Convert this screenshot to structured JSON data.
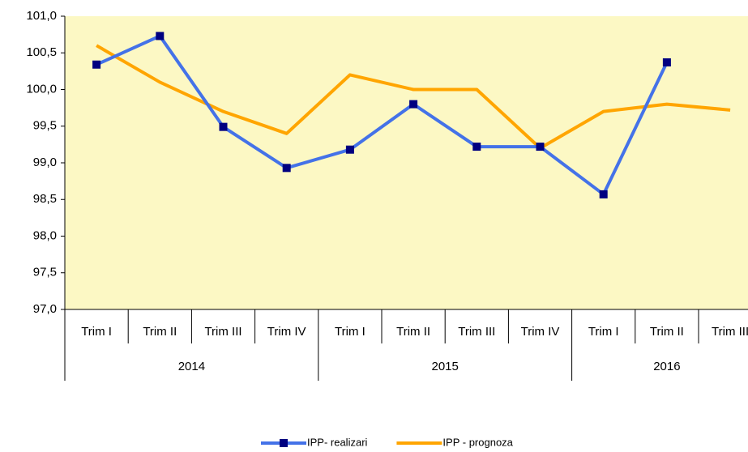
{
  "chart_data": {
    "type": "line",
    "categories": [
      "Trim I",
      "Trim II",
      "Trim III",
      "Trim IV",
      "Trim I",
      "Trim II",
      "Trim III",
      "Trim IV",
      "Trim I",
      "Trim II",
      "Trim III"
    ],
    "category_groups": [
      {
        "label": "2014",
        "span": 4
      },
      {
        "label": "2015",
        "span": 4
      },
      {
        "label": "2016",
        "span": 3
      }
    ],
    "series": [
      {
        "name": "IPP- realizari",
        "color": "#4472e8",
        "marker_color": "#000080",
        "marker": true,
        "values": [
          100.34,
          100.73,
          99.49,
          98.93,
          99.18,
          99.8,
          99.22,
          99.22,
          98.57,
          100.37,
          null
        ]
      },
      {
        "name": "IPP - prognoza",
        "color": "#ffa500",
        "marker": false,
        "values": [
          100.6,
          100.1,
          99.7,
          99.4,
          100.2,
          100.0,
          100.0,
          99.2,
          99.7,
          99.8,
          99.72
        ]
      }
    ],
    "ylim": [
      97,
      101
    ],
    "yticks": [
      {
        "value": 97,
        "label": "97,0"
      },
      {
        "value": 97.5,
        "label": "97,5"
      },
      {
        "value": 98,
        "label": "98,0"
      },
      {
        "value": 98.5,
        "label": "98,5"
      },
      {
        "value": 99,
        "label": "99,0"
      },
      {
        "value": 99.5,
        "label": "99,5"
      },
      {
        "value": 100,
        "label": "100,0"
      },
      {
        "value": 100.5,
        "label": "100,5"
      },
      {
        "value": 101,
        "label": "101,0"
      }
    ],
    "plot_background": "#fcf8c4",
    "legend": "bottom"
  }
}
